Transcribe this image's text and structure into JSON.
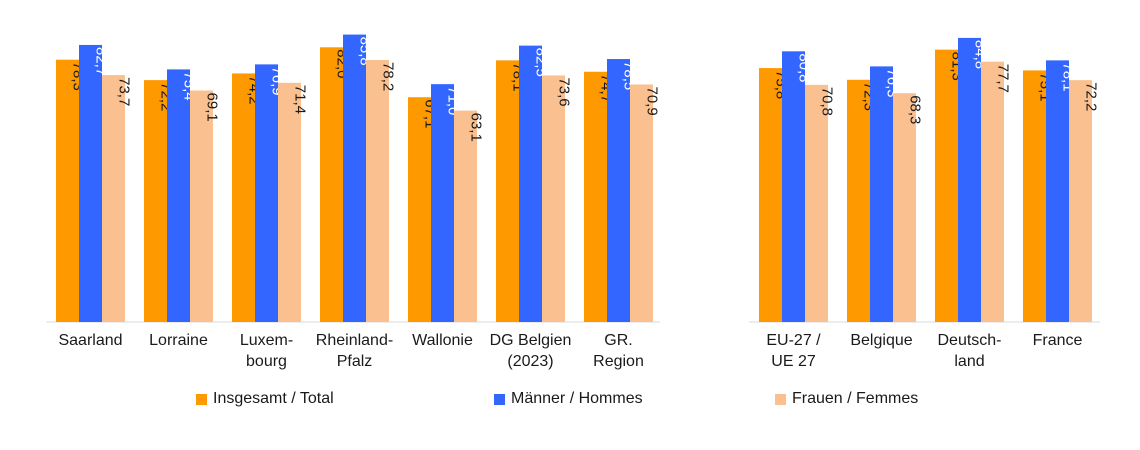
{
  "chart_data": {
    "type": "bar",
    "panels": [
      {
        "categories": [
          [
            "Saarland"
          ],
          [
            "Lorraine"
          ],
          [
            "Luxem-",
            "bourg"
          ],
          [
            "Rheinland-",
            "Pfalz"
          ],
          [
            "Wallonie"
          ],
          [
            "DG Belgien",
            "(2023)"
          ],
          [
            "GR.",
            "Region"
          ]
        ],
        "series": [
          {
            "name": "Insgesamt / Total",
            "values": [
              78.3,
              72.2,
              74.2,
              82.0,
              67.1,
              78.1,
              74.7
            ]
          },
          {
            "name": "Männer / Hommes",
            "values": [
              82.7,
              75.4,
              76.9,
              85.8,
              71.0,
              82.5,
              78.5
            ]
          },
          {
            "name": "Frauen / Femmes",
            "values": [
              73.7,
              69.1,
              71.4,
              78.2,
              63.1,
              73.6,
              70.9
            ]
          }
        ]
      },
      {
        "categories": [
          [
            "EU-27 /",
            "UE 27"
          ],
          [
            "Belgique"
          ],
          [
            "Deutsch-",
            "land"
          ],
          [
            "France"
          ]
        ],
        "series": [
          {
            "name": "Insgesamt / Total",
            "values": [
              75.8,
              72.3,
              81.3,
              75.1
            ]
          },
          {
            "name": "Männer / Hommes",
            "values": [
              80.8,
              76.3,
              84.8,
              78.1
            ]
          },
          {
            "name": "Frauen / Femmes",
            "values": [
              70.8,
              68.3,
              77.7,
              72.2
            ]
          }
        ]
      }
    ],
    "legend": [
      "Insgesamt / Total",
      "Männer / Hommes",
      "Frauen / Femmes"
    ],
    "colors": [
      "#ff9900",
      "#3366ff",
      "#fbc08f"
    ],
    "label_colors": [
      "#1a1a1a",
      "#ffffff",
      "#1a1a1a"
    ],
    "decimal_separator": ",",
    "ylim": [
      0,
      90
    ],
    "grid": false,
    "legend_position": "bottom",
    "title": "",
    "xlabel": "",
    "ylabel": ""
  }
}
